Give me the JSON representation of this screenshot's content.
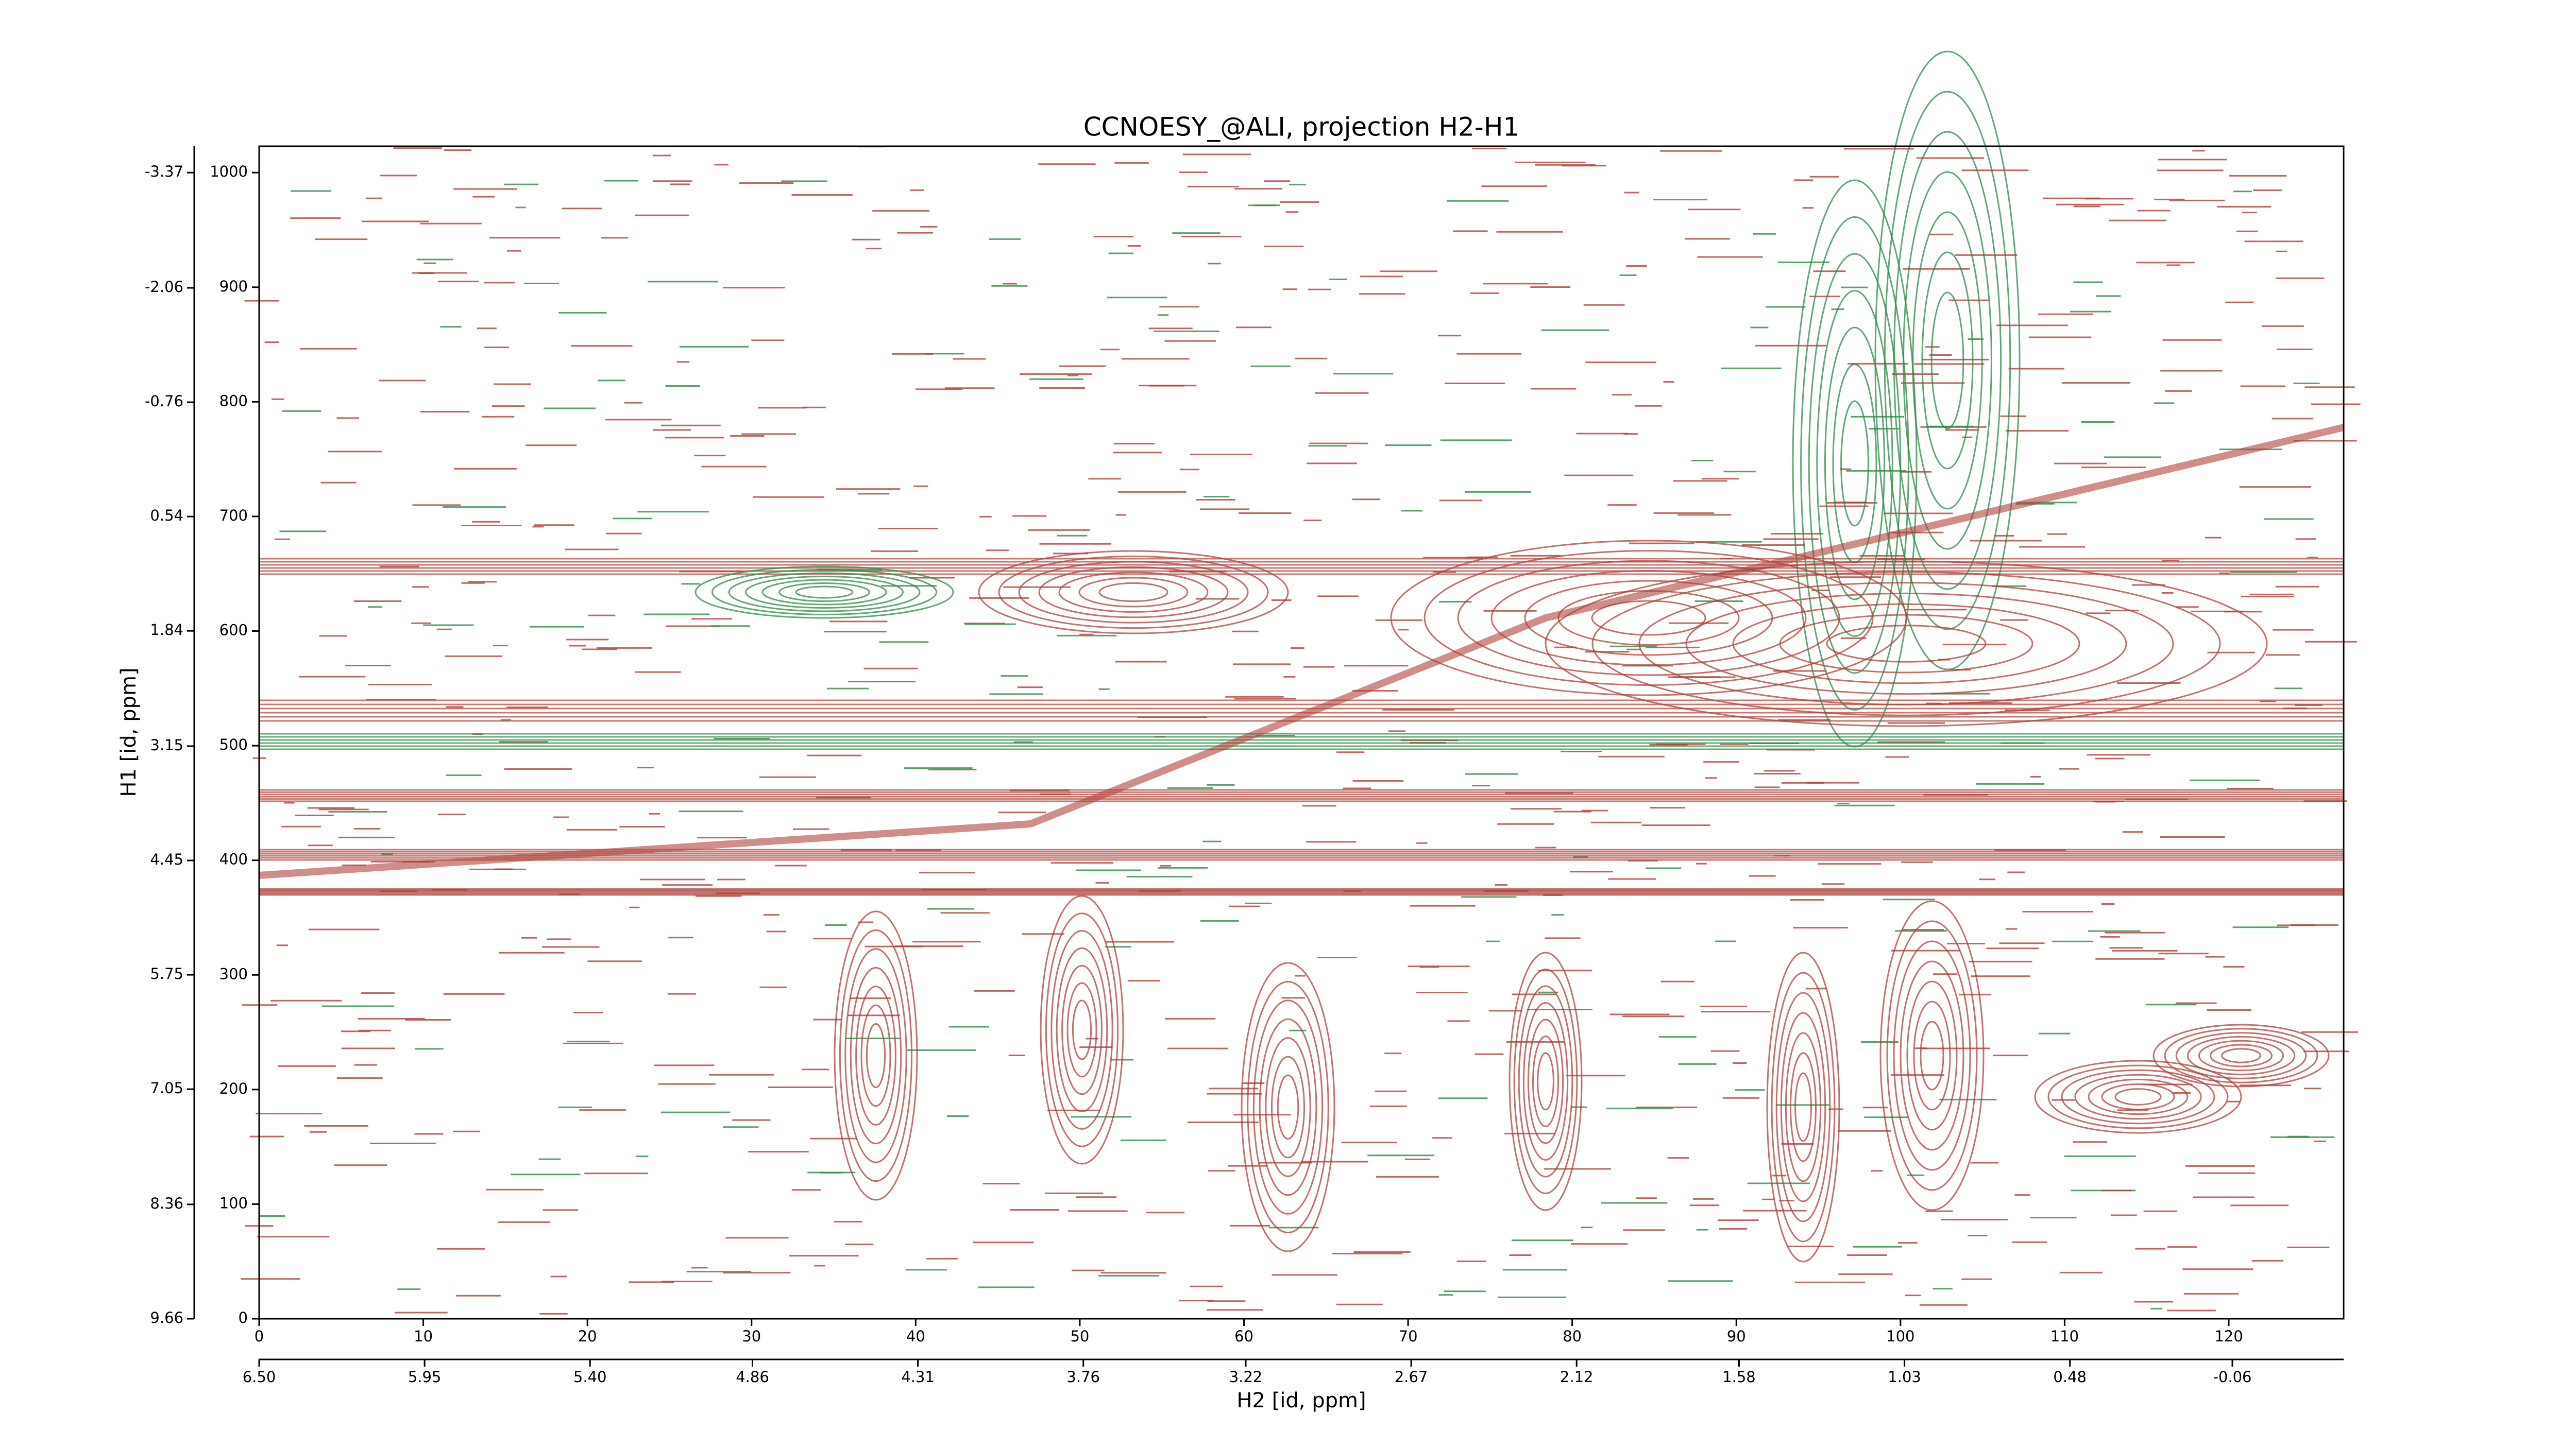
{
  "chart_data": {
    "type": "contour",
    "title": "CCNOESY_@ALI, projection H2-H1",
    "xlabel": "H2 [id, ppm]",
    "ylabel": "H1 [id, ppm]",
    "colors": [
      "#b0413a",
      "#2e8b47"
    ],
    "xlim": [
      0,
      127
    ],
    "xticks": [
      0,
      10,
      20,
      30,
      40,
      50,
      60,
      70,
      80,
      90,
      100,
      110,
      120
    ],
    "ylim": [
      0,
      1023
    ],
    "yticks": [
      0,
      100,
      200,
      300,
      400,
      500,
      600,
      700,
      800,
      900,
      1000
    ],
    "x2lim": [
      6.5,
      -0.43
    ],
    "x2ticks": [
      {
        "value": 6.5,
        "label": "6.50"
      },
      5.95,
      {
        "value": 5.4,
        "label": "5.40"
      },
      4.86,
      4.31,
      3.76,
      3.22,
      2.67,
      2.12,
      1.58,
      1.03,
      0.48,
      -0.06
    ],
    "y2lim": [
      9.66,
      -3.67
    ],
    "y2ticks": [
      9.66,
      8.36,
      7.05,
      5.75,
      4.45,
      3.15,
      1.84,
      0.54,
      -0.76,
      -2.06,
      -3.37
    ]
  }
}
